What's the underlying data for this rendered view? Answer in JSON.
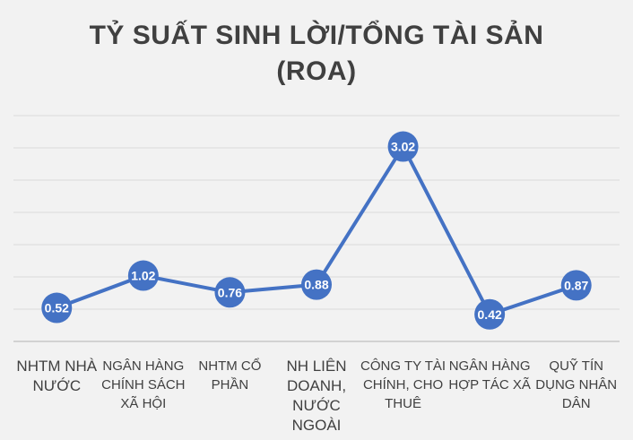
{
  "chart_data": {
    "type": "line",
    "title": "TỶ SUẤT SINH LỜI/TỔNG TÀI SẢN",
    "subtitle": "(ROA)",
    "categories": [
      "NHTM NHÀ NƯỚC",
      "NGÂN HÀNG CHÍNH SÁCH XÃ HỘI",
      "NHTM CỔ PHẦN",
      "NH LIÊN DOANH, NƯỚC NGOÀI",
      "CÔNG TY TÀI CHÍNH, CHO THUÊ",
      "NGÂN HÀNG HỢP TÁC XÃ",
      "QUỸ TÍN DỤNG NHÂN DÂN"
    ],
    "series": [
      {
        "values": [
          0.52,
          1.02,
          0.76,
          0.88,
          3.02,
          0.42,
          0.87
        ]
      }
    ],
    "data_labels": [
      "0.52",
      "1.02",
      "0.76",
      "0.88",
      "3.02",
      "0.42",
      "0.87"
    ],
    "ylim": [
      0,
      3.5
    ],
    "grid": true,
    "legend": "none",
    "colors": {
      "line": "#4472c4",
      "marker": "#4472c4",
      "label_text": "#ffffff",
      "grid": "#d9d9d9",
      "axis": "#bfbfbf",
      "text": "#404040"
    }
  }
}
